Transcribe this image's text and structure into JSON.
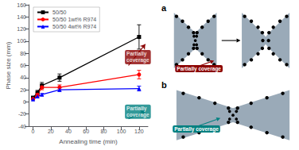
{
  "chart_data": [
    {
      "type": "line",
      "x": [
        0,
        5,
        10,
        30,
        120
      ],
      "series": [
        {
          "name": "50/50",
          "color": "black",
          "marker": "square",
          "values": [
            7,
            15,
            27,
            40,
            107
          ],
          "errors": [
            2,
            4,
            5,
            6,
            20
          ]
        },
        {
          "name": "50/50 1wt% R974",
          "color": "red",
          "marker": "circle",
          "values": [
            5,
            12,
            24,
            24,
            45
          ],
          "errors": [
            1,
            3,
            4,
            4,
            7
          ]
        },
        {
          "name": "50/50 4wt% R974",
          "color": "blue",
          "marker": "triangle",
          "values": [
            4,
            9,
            12,
            20,
            22
          ],
          "errors": [
            1,
            2,
            2,
            3,
            4
          ]
        }
      ],
      "xlabel": "Annealing time (min)",
      "ylabel": "Phase size (mm)",
      "xlim": [
        -5,
        130
      ],
      "ylim": [
        -40,
        160
      ],
      "xticks": [
        0,
        20,
        40,
        60,
        80,
        100,
        120
      ],
      "yticks": [
        -40,
        -20,
        0,
        20,
        40,
        60,
        80,
        100,
        120,
        140,
        160
      ],
      "grid": false,
      "legend": "upper left",
      "annotations": [
        {
          "text": "Partially\ncoverage",
          "color": "darkred",
          "x": 104,
          "y": 62,
          "arrow_from": [
            108,
            60
          ],
          "arrow_to": [
            127,
            95
          ]
        },
        {
          "text": "Partially\ncoverage",
          "color": "teal",
          "x": 104,
          "y": -28,
          "arrow_from": [
            108,
            -28
          ],
          "arrow_to": [
            127,
            -15
          ]
        }
      ]
    },
    {
      "type": "schematic",
      "labels": [
        "a",
        "b"
      ],
      "color": "#9aaab8",
      "annotations": [
        {
          "text": "Partially coverage",
          "color": "#8b0000"
        },
        {
          "text": "Partially coverage",
          "color": "teal"
        }
      ]
    }
  ]
}
